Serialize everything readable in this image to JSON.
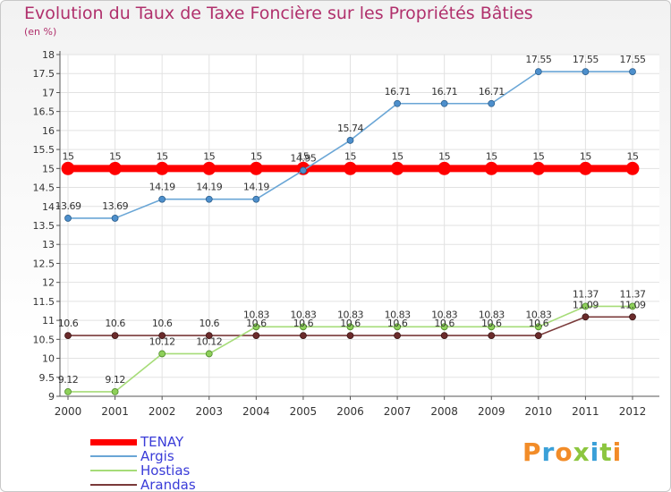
{
  "title": "Evolution du Taux de Taxe Foncière sur les Propriétés Bâties",
  "unit_label": "(en %)",
  "logo_text": "Proxiti",
  "chart_data": {
    "type": "line",
    "title": "Evolution du Taux de Taxe Foncière sur les Propriétés Bâties",
    "ylabel": "(en %)",
    "ylim": [
      9,
      18
    ],
    "yticks": [
      "9",
      "9.5",
      "10",
      "10.5",
      "11",
      "11.5",
      "12",
      "12.5",
      "13",
      "13.5",
      "14",
      "14.5",
      "15",
      "15.5",
      "16",
      "16.5",
      "17",
      "17.5",
      "18"
    ],
    "categories": [
      "2000",
      "2001",
      "2002",
      "2003",
      "2004",
      "2005",
      "2006",
      "2007",
      "2008",
      "2009",
      "2010",
      "2011",
      "2012"
    ],
    "series": [
      {
        "name": "TENAY",
        "color": "#ff0000",
        "values": [
          15,
          15,
          15,
          15,
          15,
          15,
          15,
          15,
          15,
          15,
          15,
          15,
          15
        ],
        "labels": [
          "15",
          "15",
          "15",
          "15",
          "15",
          "15",
          "15",
          "15",
          "15",
          "15",
          "15",
          "15",
          "15"
        ]
      },
      {
        "name": "Argis",
        "color": "#6aa6d6",
        "values": [
          13.69,
          13.69,
          14.19,
          14.19,
          14.19,
          14.95,
          15.74,
          16.71,
          16.71,
          16.71,
          17.55,
          17.55,
          17.55
        ],
        "labels": [
          "13.69",
          "13.69",
          "14.19",
          "14.19",
          "14.19",
          "14.95",
          "15.74",
          "16.71",
          "16.71",
          "16.71",
          "17.55",
          "17.55",
          "17.55"
        ]
      },
      {
        "name": "Hostias",
        "color": "#a6dc78",
        "values": [
          9.12,
          9.12,
          10.12,
          10.12,
          10.83,
          10.83,
          10.83,
          10.83,
          10.83,
          10.83,
          10.83,
          11.37,
          11.37
        ],
        "labels": [
          "9.12",
          "9.12",
          "10.12",
          "10.12",
          "10.83",
          "10.83",
          "10.83",
          "10.83",
          "10.83",
          "10.83",
          "10.83",
          "11.37",
          "11.37"
        ]
      },
      {
        "name": "Arandas",
        "color": "#7a3a3a",
        "values": [
          10.6,
          10.6,
          10.6,
          10.6,
          10.6,
          10.6,
          10.6,
          10.6,
          10.6,
          10.6,
          10.6,
          11.09,
          11.09
        ],
        "labels": [
          "10.6",
          "10.6",
          "10.6",
          "10.6",
          "10.6",
          "10.6",
          "10.6",
          "10.6",
          "10.6",
          "10.6",
          "10.6",
          "11.09",
          "11.09"
        ]
      }
    ]
  }
}
